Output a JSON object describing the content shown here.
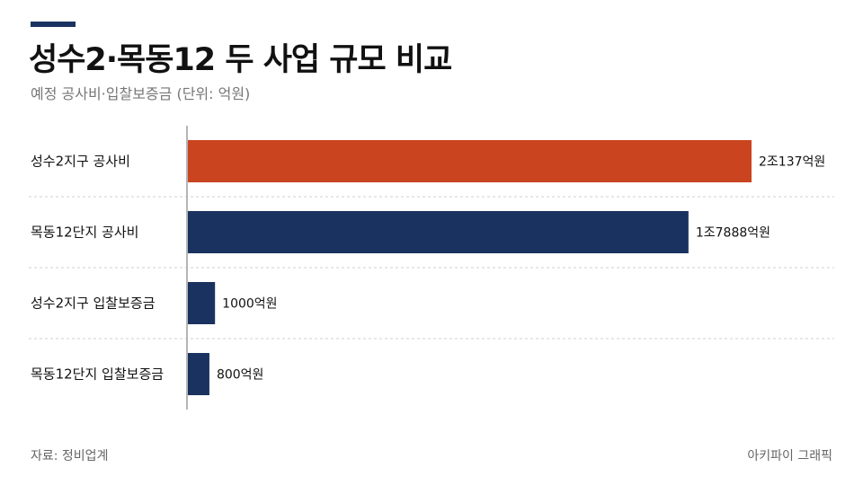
{
  "header": {
    "title": "성수2·목동12 두 사업 규모 비교",
    "subtitle": "예정 공사비·입찰보증금 (단위: 억원)"
  },
  "footer": {
    "source": "자료: 정비업계",
    "credit": "아키파이 그래픽"
  },
  "colors": {
    "accent": "#1a3260",
    "highlight": "#c9441f",
    "bar": "#1a3260"
  },
  "chart_data": {
    "type": "bar",
    "orientation": "horizontal",
    "categories": [
      "성수2지구 공사비",
      "목동12단지 공사비",
      "성수2지구 입찰보증금",
      "목동12단지 입찰보증금"
    ],
    "values": [
      20137,
      17888,
      1000,
      800
    ],
    "value_labels": [
      "2조137억원",
      "1조7888억원",
      "1000억원",
      "800억원"
    ],
    "highlight_index": 0,
    "unit": "억원",
    "grid": false
  }
}
